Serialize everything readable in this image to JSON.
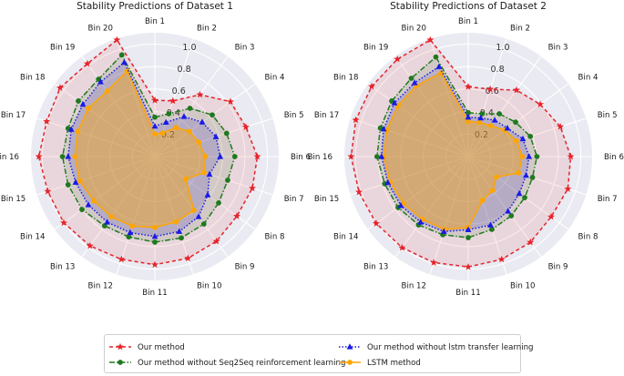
{
  "legend": {
    "items": [
      {
        "label": "Our method",
        "color": "#e6242b",
        "marker": "star",
        "dash": "4,3"
      },
      {
        "label": "Our method without lstm transfer learning",
        "color": "#1a1ae6",
        "marker": "triangle",
        "dash": "1.5,2"
      },
      {
        "label": "Our method without Seq2Seq reinforcement learning",
        "color": "#1f7a1f",
        "marker": "circle",
        "dash": "6,2,1.5,2"
      },
      {
        "label": "LSTM method",
        "color": "#ffa500",
        "marker": "circle",
        "dash": ""
      }
    ],
    "placement": "bottom-center"
  },
  "chart_data": [
    {
      "type": "radar",
      "title": "Stability Predictions of Dataset 1",
      "categories": [
        "Bin 1",
        "Bin 2",
        "Bin 3",
        "Bin 4",
        "Bin 5",
        "Bin 6",
        "Bin 7",
        "Bin 8",
        "Bin 9",
        "Bin 10",
        "Bin 11",
        "Bin 12",
        "Bin 13",
        "Bin 14",
        "Bin 15",
        "Bin 16",
        "Bin 17",
        "Bin 18",
        "Bin 19",
        "Bin 20"
      ],
      "radial_ticks": [
        "0.2",
        "0.4",
        "0.6",
        "0.8",
        "1.0"
      ],
      "radial_tick_values": [
        0.2,
        0.4,
        0.6,
        0.8,
        1.0
      ],
      "rlim": [
        0,
        1.1
      ],
      "grid": true,
      "series": [
        {
          "name": "Our method",
          "values": [
            0.5,
            0.52,
            0.68,
            0.83,
            0.85,
            0.91,
            0.91,
            0.9,
            0.93,
            0.95,
            0.96,
            0.96,
            0.98,
            1.0,
            1.0,
            1.03,
            1.01,
            1.04,
            1.02,
            1.09
          ]
        },
        {
          "name": "Our method without Seq2Seq reinforcement learning",
          "values": [
            0.35,
            0.4,
            0.53,
            0.63,
            0.67,
            0.71,
            0.68,
            0.7,
            0.74,
            0.76,
            0.76,
            0.75,
            0.76,
            0.8,
            0.81,
            0.82,
            0.81,
            0.84,
            0.85,
            0.95
          ]
        },
        {
          "name": "Our method without lstm transfer learning",
          "values": [
            0.27,
            0.32,
            0.44,
            0.52,
            0.57,
            0.58,
            0.51,
            0.58,
            0.66,
            0.7,
            0.71,
            0.71,
            0.72,
            0.73,
            0.74,
            0.77,
            0.78,
            0.79,
            0.82,
            0.88
          ]
        },
        {
          "name": "LSTM method",
          "values": [
            0.2,
            0.22,
            0.32,
            0.38,
            0.41,
            0.45,
            0.46,
            0.34,
            0.59,
            0.61,
            0.63,
            0.65,
            0.66,
            0.67,
            0.7,
            0.71,
            0.72,
            0.73,
            0.72,
            0.8
          ]
        }
      ]
    },
    {
      "type": "radar",
      "title": "Stability Predictions of Dataset 2",
      "categories": [
        "Bin 1",
        "Bin 2",
        "Bin 3",
        "Bin 4",
        "Bin 5",
        "Bin 6",
        "Bin 7",
        "Bin 8",
        "Bin 9",
        "Bin 10",
        "Bin 11",
        "Bin 12",
        "Bin 13",
        "Bin 14",
        "Bin 15",
        "Bin 16",
        "Bin 17",
        "Bin 18",
        "Bin 19",
        "Bin 20"
      ],
      "radial_ticks": [
        "0.2",
        "0.4",
        "0.6",
        "0.8",
        "1.0"
      ],
      "radial_tick_values": [
        0.2,
        0.4,
        0.6,
        0.8,
        1.0
      ],
      "rlim": [
        0,
        1.1
      ],
      "grid": true,
      "series": [
        {
          "name": "Our method",
          "values": [
            0.62,
            0.63,
            0.73,
            0.79,
            0.86,
            0.91,
            0.93,
            0.91,
            0.94,
            0.96,
            0.98,
            0.99,
            1.0,
            1.01,
            1.02,
            1.04,
            1.05,
            1.06,
            1.07,
            1.09
          ]
        },
        {
          "name": "Our method without Seq2Seq reinforcement learning",
          "values": [
            0.39,
            0.4,
            0.47,
            0.52,
            0.58,
            0.61,
            0.6,
            0.62,
            0.65,
            0.68,
            0.72,
            0.73,
            0.75,
            0.77,
            0.78,
            0.81,
            0.82,
            0.84,
            0.86,
            0.93
          ]
        },
        {
          "name": "Our method without lstm transfer learning",
          "values": [
            0.35,
            0.36,
            0.4,
            0.43,
            0.51,
            0.54,
            0.54,
            0.56,
            0.6,
            0.64,
            0.65,
            0.7,
            0.72,
            0.74,
            0.75,
            0.77,
            0.79,
            0.81,
            0.81,
            0.84
          ]
        },
        {
          "name": "LSTM method",
          "values": [
            0.31,
            0.32,
            0.34,
            0.4,
            0.45,
            0.48,
            0.47,
            0.31,
            0.37,
            0.41,
            0.63,
            0.68,
            0.69,
            0.71,
            0.73,
            0.75,
            0.76,
            0.77,
            0.78,
            0.78
          ]
        }
      ]
    }
  ]
}
